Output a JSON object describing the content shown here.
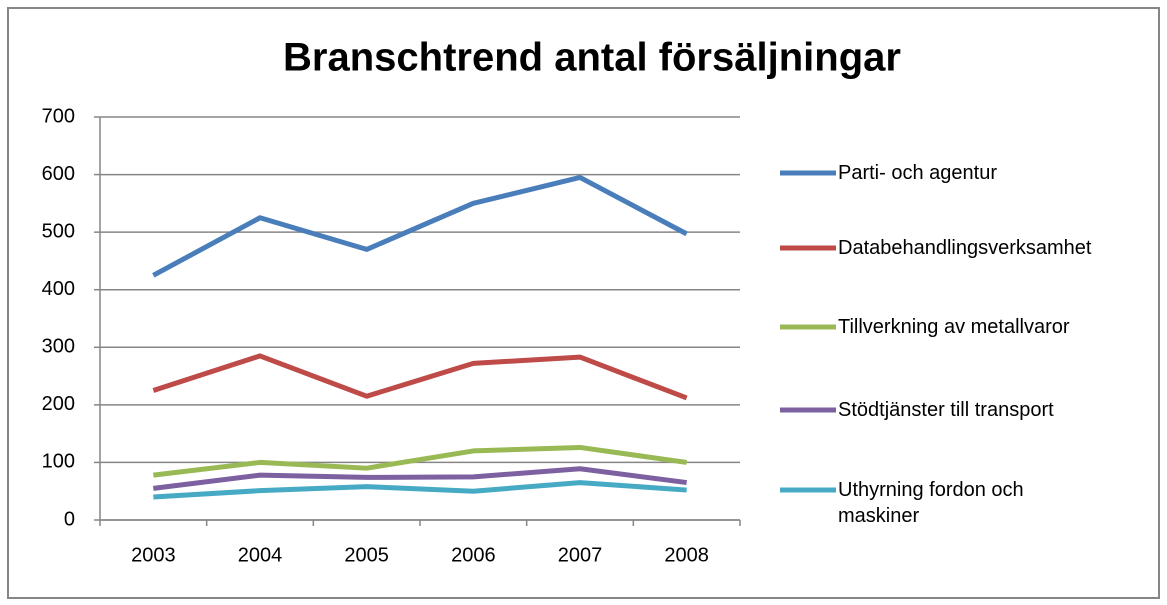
{
  "chart_data": {
    "type": "line",
    "title": "Branschtrend antal försäljningar",
    "categories": [
      "2003",
      "2004",
      "2005",
      "2006",
      "2007",
      "2008"
    ],
    "series": [
      {
        "name": "Parti- och agentur",
        "color": "#4a7ebb",
        "values": [
          425,
          525,
          470,
          550,
          595,
          497
        ]
      },
      {
        "name": "Databehandlingsverksamhet",
        "color": "#be4b48",
        "values": [
          225,
          285,
          215,
          272,
          283,
          212
        ]
      },
      {
        "name": "Tillverkning av metallvaror",
        "color": "#98b954",
        "values": [
          78,
          100,
          90,
          120,
          126,
          100
        ]
      },
      {
        "name": "Stödtjänster till transport",
        "color": "#7d60a0",
        "values": [
          55,
          78,
          74,
          75,
          89,
          65
        ]
      },
      {
        "name": "Uthyrning fordon och maskiner",
        "color": "#46aac5",
        "values": [
          40,
          51,
          58,
          50,
          65,
          52
        ]
      }
    ],
    "ylim": [
      0,
      700
    ],
    "yticks": [
      0,
      100,
      200,
      300,
      400,
      500,
      600,
      700
    ],
    "grid": true,
    "legend": "right"
  }
}
